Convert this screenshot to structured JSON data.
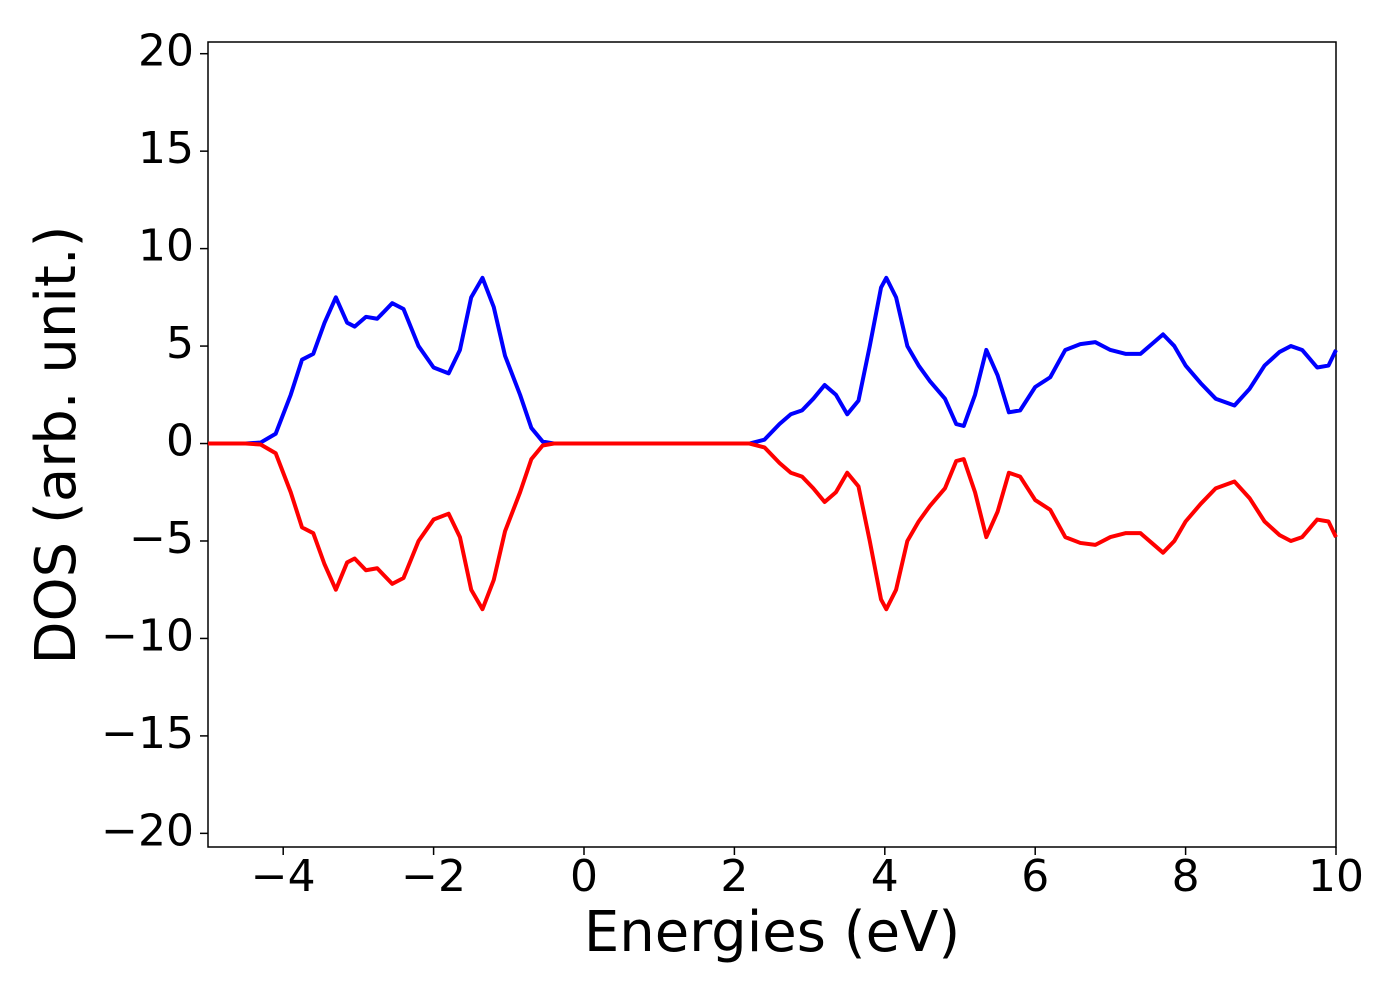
{
  "chart_data": {
    "type": "line",
    "x_label": "Energies (eV)",
    "y_label": "DOS (arb. unit.)",
    "x": [
      -5,
      -4.5,
      -4.3,
      -4.1,
      -3.9,
      -3.75,
      -3.6,
      -3.45,
      -3.3,
      -3.15,
      -3.05,
      -2.9,
      -2.75,
      -2.55,
      -2.4,
      -2.2,
      -2.0,
      -1.8,
      -1.65,
      -1.5,
      -1.35,
      -1.2,
      -1.05,
      -0.85,
      -0.7,
      -0.55,
      -0.4,
      0,
      2,
      2.2,
      2.4,
      2.6,
      2.75,
      2.9,
      3.05,
      3.2,
      3.35,
      3.5,
      3.65,
      3.8,
      3.95,
      4.02,
      4.15,
      4.3,
      4.45,
      4.6,
      4.8,
      4.95,
      5.05,
      5.2,
      5.35,
      5.5,
      5.65,
      5.8,
      6.0,
      6.2,
      6.4,
      6.6,
      6.8,
      7.0,
      7.2,
      7.4,
      7.55,
      7.7,
      7.85,
      8.0,
      8.2,
      8.4,
      8.65,
      8.85,
      9.05,
      9.25,
      9.4,
      9.55,
      9.75,
      9.9,
      10
    ],
    "series": [
      {
        "color": "#0000ff",
        "values": [
          0,
          0,
          0.05,
          0.5,
          2.5,
          4.3,
          4.6,
          6.2,
          7.5,
          6.2,
          6.0,
          6.5,
          6.4,
          7.2,
          6.9,
          5.0,
          3.9,
          3.6,
          4.8,
          7.5,
          8.5,
          7.0,
          4.5,
          2.5,
          0.8,
          0.1,
          0,
          0,
          0,
          0,
          0.2,
          1.0,
          1.5,
          1.7,
          2.3,
          3.0,
          2.5,
          1.5,
          2.2,
          5.0,
          8.0,
          8.5,
          7.5,
          5.0,
          4.0,
          3.2,
          2.3,
          1.0,
          0.9,
          2.5,
          4.8,
          3.5,
          1.6,
          1.7,
          2.9,
          3.4,
          4.8,
          5.1,
          5.2,
          4.8,
          4.6,
          4.6,
          5.1,
          5.6,
          5.0,
          4.0,
          3.1,
          2.3,
          1.95,
          2.8,
          4.0,
          4.7,
          5.0,
          4.8,
          3.9,
          4.0,
          4.8
        ]
      },
      {
        "color": "#ff0000",
        "values": [
          0,
          0,
          -0.05,
          -0.5,
          -2.5,
          -4.3,
          -4.6,
          -6.2,
          -7.5,
          -6.1,
          -5.9,
          -6.5,
          -6.4,
          -7.2,
          -6.9,
          -5.0,
          -3.9,
          -3.6,
          -4.8,
          -7.5,
          -8.5,
          -7.0,
          -4.5,
          -2.5,
          -0.8,
          -0.1,
          0,
          0,
          0,
          0,
          -0.2,
          -1.0,
          -1.5,
          -1.7,
          -2.3,
          -3.0,
          -2.5,
          -1.5,
          -2.2,
          -5.0,
          -8.0,
          -8.5,
          -7.5,
          -5.0,
          -4.0,
          -3.2,
          -2.3,
          -0.9,
          -0.8,
          -2.5,
          -4.8,
          -3.5,
          -1.5,
          -1.7,
          -2.9,
          -3.4,
          -4.8,
          -5.1,
          -5.2,
          -4.8,
          -4.6,
          -4.6,
          -5.1,
          -5.6,
          -5.0,
          -4.0,
          -3.1,
          -2.3,
          -1.95,
          -2.8,
          -4.0,
          -4.7,
          -5.0,
          -4.8,
          -3.9,
          -4.0,
          -4.8
        ]
      }
    ],
    "xlim": [
      -5,
      10
    ],
    "xticks": [
      {
        "value": -4,
        "label": "−4"
      },
      {
        "value": -2,
        "label": "−2"
      },
      0,
      2,
      4,
      6,
      8,
      10
    ],
    "ylim": [
      -20.7,
      20.6
    ],
    "yticks": [
      {
        "value": -20,
        "label": "−20"
      },
      {
        "value": -15,
        "label": "−15"
      },
      {
        "value": -10,
        "label": "−10"
      },
      {
        "value": -5,
        "label": "−5"
      },
      0,
      5,
      10,
      15,
      20
    ],
    "grid": false
  }
}
